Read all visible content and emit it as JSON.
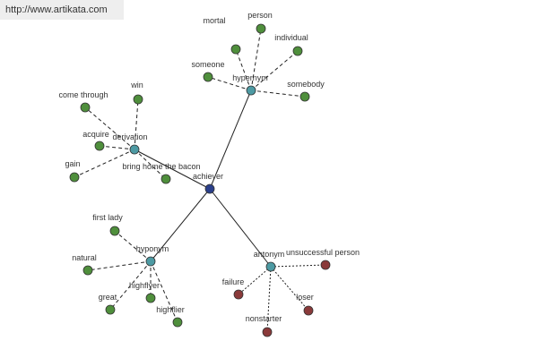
{
  "watermark": "http://www.artikata.com",
  "nodes": [
    {
      "label": "achiever"
    },
    {
      "label": "hypernym"
    },
    {
      "label": "derivation"
    },
    {
      "label": "hyponym"
    },
    {
      "label": "antonym"
    },
    {
      "label": "mortal"
    },
    {
      "label": "person"
    },
    {
      "label": "individual"
    },
    {
      "label": "someone"
    },
    {
      "label": "somebody"
    },
    {
      "label": "come through"
    },
    {
      "label": "win"
    },
    {
      "label": "acquire"
    },
    {
      "label": "gain"
    },
    {
      "label": "bring home the bacon"
    },
    {
      "label": "first lady"
    },
    {
      "label": "natural"
    },
    {
      "label": "great"
    },
    {
      "label": "highflyer"
    },
    {
      "label": "highflier"
    },
    {
      "label": "unsuccessful person"
    },
    {
      "label": "failure"
    },
    {
      "label": "loser"
    },
    {
      "label": "nonstarter"
    }
  ]
}
